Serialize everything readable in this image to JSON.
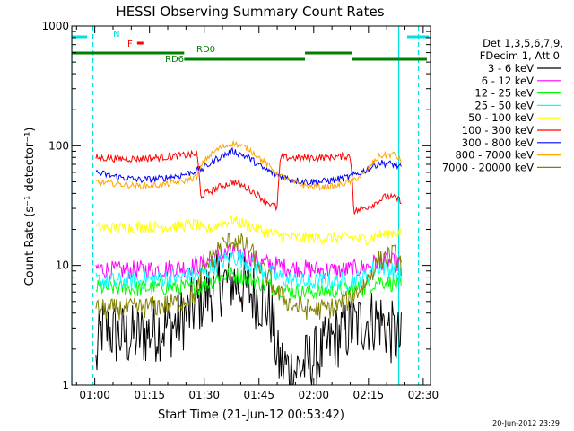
{
  "chart_data": {
    "type": "line",
    "title": "HESSI Observing Summary Count Rates",
    "xlabel": "Start Time (21-Jun-12 00:53:42)",
    "ylabel": "Count Rate (s⁻¹ detector⁻¹)",
    "yscale": "log",
    "ylim": [
      1,
      1000
    ],
    "xlim_minutes": [
      53.7,
      152.0
    ],
    "x_ticks": [
      {
        "minute": 60,
        "label": "01:00"
      },
      {
        "minute": 75,
        "label": "01:15"
      },
      {
        "minute": 90,
        "label": "01:30"
      },
      {
        "minute": 105,
        "label": "01:45"
      },
      {
        "minute": 120,
        "label": "02:00"
      },
      {
        "minute": 135,
        "label": "02:15"
      },
      {
        "minute": 150,
        "label": "02:30"
      }
    ],
    "y_ticks": [
      {
        "value": 1,
        "label": "1"
      },
      {
        "value": 10,
        "label": "10"
      },
      {
        "value": 100,
        "label": "100"
      },
      {
        "value": 1000,
        "label": "1000"
      }
    ],
    "legend": {
      "header": [
        "Det 1,3,5,6,7,9,",
        "FDecim 1, Att 0"
      ],
      "position": "right"
    },
    "series": [
      {
        "name": "3 - 6 keV",
        "color": "#000000",
        "x_minutes": [
          60,
          62,
          66,
          70,
          74,
          78,
          82,
          86,
          90,
          94,
          98,
          102,
          106,
          108,
          110,
          114,
          118,
          122,
          126,
          130,
          134,
          138,
          140,
          144
        ],
        "values": [
          1.2,
          3.0,
          2.6,
          2.5,
          2.7,
          3.0,
          3.2,
          4.0,
          5.5,
          7.0,
          7.5,
          6.2,
          5.0,
          4.2,
          1.6,
          1.3,
          1.5,
          1.8,
          2.5,
          3.0,
          3.4,
          3.6,
          3.0,
          2.2
        ]
      },
      {
        "name": "6 - 12 keV",
        "color": "#ff00ff",
        "x_minutes": [
          60,
          66,
          72,
          78,
          84,
          88,
          90,
          94,
          98,
          102,
          106,
          110,
          114,
          118,
          122,
          126,
          130,
          134,
          138,
          142,
          144
        ],
        "values": [
          9.5,
          9.0,
          9.2,
          9.3,
          9.6,
          10.0,
          10.5,
          12.0,
          13.0,
          12.0,
          10.5,
          10.0,
          9.5,
          9.3,
          9.2,
          9.0,
          9.2,
          9.6,
          11.0,
          10.5,
          10.0
        ]
      },
      {
        "name": "12 - 25 keV",
        "color": "#00ff00",
        "x_minutes": [
          60,
          66,
          72,
          78,
          84,
          88,
          90,
          94,
          98,
          102,
          106,
          110,
          114,
          118,
          122,
          126,
          130,
          134,
          138,
          142,
          144
        ],
        "values": [
          6.5,
          6.5,
          6.4,
          6.6,
          6.6,
          6.5,
          6.8,
          8.0,
          8.5,
          7.8,
          7.0,
          6.5,
          6.0,
          6.0,
          6.0,
          6.1,
          6.3,
          6.5,
          7.5,
          7.0,
          6.6
        ]
      },
      {
        "name": "25 - 50 keV",
        "color": "#00ffff",
        "x_minutes": [
          60,
          66,
          72,
          78,
          84,
          88,
          90,
          94,
          98,
          102,
          106,
          110,
          114,
          118,
          122,
          126,
          130,
          134,
          138,
          142,
          144
        ],
        "values": [
          7.5,
          7.3,
          7.5,
          7.8,
          8.0,
          8.3,
          8.5,
          10.5,
          12.0,
          10.5,
          9.0,
          8.0,
          7.5,
          7.2,
          7.3,
          7.4,
          7.5,
          8.0,
          10.0,
          9.0,
          8.0
        ]
      },
      {
        "name": "50 - 100 keV",
        "color": "#ffff00",
        "x_minutes": [
          60,
          66,
          72,
          78,
          84,
          88,
          90,
          94,
          98,
          102,
          106,
          110,
          114,
          118,
          122,
          126,
          130,
          134,
          138,
          142,
          144
        ],
        "values": [
          20.5,
          20.5,
          21.0,
          21.0,
          21.5,
          22.0,
          19.5,
          22.0,
          24.0,
          21.5,
          19.5,
          18.0,
          17.0,
          17.0,
          17.0,
          17.0,
          17.2,
          16.5,
          18.0,
          19.0,
          18.5
        ]
      },
      {
        "name": "100 - 300 keV",
        "color": "#ff0000",
        "x_minutes": [
          60,
          66,
          72,
          78,
          84,
          88,
          89,
          94,
          98,
          102,
          106,
          110,
          111,
          116,
          122,
          126,
          130,
          131,
          136,
          140,
          144
        ],
        "values": [
          80,
          78,
          78,
          80,
          83,
          85,
          38,
          45,
          50,
          44,
          36,
          30,
          80,
          79,
          80,
          81,
          82,
          28,
          32,
          38,
          35
        ]
      },
      {
        "name": "300 - 800 keV",
        "color": "#0000ff",
        "x_minutes": [
          60,
          66,
          72,
          78,
          84,
          88,
          90,
          94,
          98,
          102,
          106,
          110,
          114,
          118,
          122,
          126,
          130,
          134,
          138,
          142,
          144
        ],
        "values": [
          60,
          55,
          52,
          53,
          57,
          62,
          65,
          80,
          90,
          80,
          65,
          57,
          52,
          50,
          50,
          52,
          55,
          62,
          72,
          70,
          65
        ]
      },
      {
        "name": "800 - 7000 keV",
        "color": "#ffa500",
        "x_minutes": [
          60,
          66,
          72,
          78,
          84,
          88,
          90,
          94,
          98,
          102,
          106,
          110,
          114,
          118,
          122,
          126,
          130,
          134,
          138,
          142,
          144
        ],
        "values": [
          50,
          48,
          46,
          47,
          50,
          55,
          75,
          95,
          105,
          95,
          75,
          58,
          50,
          46,
          45,
          46,
          50,
          58,
          82,
          85,
          75
        ]
      },
      {
        "name": "7000 - 20000 keV",
        "color": "#808000",
        "x_minutes": [
          60,
          66,
          72,
          78,
          84,
          88,
          90,
          94,
          98,
          102,
          106,
          110,
          114,
          118,
          122,
          126,
          130,
          134,
          138,
          142,
          144
        ],
        "values": [
          4.3,
          4.3,
          4.4,
          4.6,
          5.0,
          5.8,
          9.5,
          14.0,
          16.5,
          14.0,
          9.0,
          5.8,
          4.7,
          4.3,
          4.3,
          4.5,
          5.2,
          7.0,
          11.0,
          12.5,
          10.0
        ]
      }
    ],
    "annotations": [
      {
        "text": "N",
        "color": "#00e0e0"
      },
      {
        "text": "F",
        "color": "#ff0000"
      },
      {
        "text": "RD0",
        "color": "#008000"
      },
      {
        "text": "RD6",
        "color": "#008000"
      }
    ],
    "flag_bars": [
      {
        "name": "N",
        "color": "#00e0e0",
        "x_minutes": [
          [
            53.7,
            57.9
          ],
          [
            145.6,
            151.6
          ]
        ]
      },
      {
        "name": "F",
        "color": "#ff0000",
        "x_minutes": [
          [
            71.6,
            73.3
          ]
        ]
      },
      {
        "name": "RD0",
        "color": "#008000",
        "x_minutes": [
          [
            53.7,
            84.5
          ],
          [
            117.6,
            130.4
          ]
        ]
      },
      {
        "name": "RD6",
        "color": "#008000",
        "x_minutes": [
          [
            84.5,
            117.6
          ],
          [
            130.4,
            151.0
          ]
        ]
      }
    ],
    "solid_vlines_minutes": [
      53.7,
      143.3
    ],
    "dashed_vlines_minutes": [
      59.5,
      148.7
    ]
  },
  "footer": {
    "date_stamp": "20-Jun-2012 23:29"
  }
}
